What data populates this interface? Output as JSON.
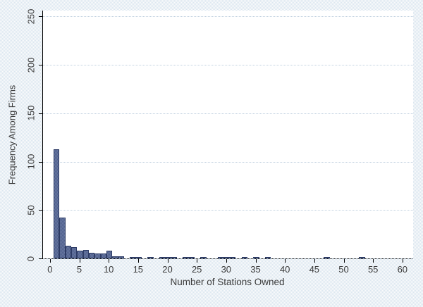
{
  "figure": {
    "background_color": "#e9f0f6",
    "plot_background_color": "#ffffff",
    "bar_fill_color": "#5b6b96",
    "bar_border_color": "#2e3c66",
    "gridline_color": "#c0d0df",
    "axis_color": "#000000",
    "text_color": "#3b3b3b"
  },
  "chart_data": {
    "type": "bar",
    "title": "",
    "xlabel": "Number of Stations Owned",
    "ylabel": "Frequency Among Firms",
    "x_ticks": [
      0,
      5,
      10,
      15,
      20,
      25,
      30,
      35,
      40,
      45,
      50,
      55,
      60
    ],
    "y_ticks": [
      0,
      50,
      100,
      150,
      200,
      250
    ],
    "xlim": [
      -1.3,
      61.7
    ],
    "ylim": [
      0,
      256
    ],
    "grid": "horizontal-dotted",
    "legend_position": "none",
    "bar_width": 1,
    "bars": [
      {
        "x": 1,
        "frequency": 113
      },
      {
        "x": 2,
        "frequency": 42
      },
      {
        "x": 3,
        "frequency": 13
      },
      {
        "x": 4,
        "frequency": 12
      },
      {
        "x": 5,
        "frequency": 8
      },
      {
        "x": 6,
        "frequency": 9
      },
      {
        "x": 7,
        "frequency": 6
      },
      {
        "x": 8,
        "frequency": 5
      },
      {
        "x": 9,
        "frequency": 5
      },
      {
        "x": 10,
        "frequency": 8
      },
      {
        "x": 11,
        "frequency": 2
      },
      {
        "x": 12,
        "frequency": 2
      },
      {
        "x": 14,
        "frequency": 1
      },
      {
        "x": 15,
        "frequency": 1
      },
      {
        "x": 17,
        "frequency": 1
      },
      {
        "x": 19,
        "frequency": 1
      },
      {
        "x": 20,
        "frequency": 1
      },
      {
        "x": 21,
        "frequency": 1
      },
      {
        "x": 23,
        "frequency": 1
      },
      {
        "x": 24,
        "frequency": 1
      },
      {
        "x": 26,
        "frequency": 1
      },
      {
        "x": 29,
        "frequency": 1
      },
      {
        "x": 30,
        "frequency": 1
      },
      {
        "x": 31,
        "frequency": 1
      },
      {
        "x": 33,
        "frequency": 1
      },
      {
        "x": 35,
        "frequency": 1
      },
      {
        "x": 37,
        "frequency": 1
      },
      {
        "x": 47,
        "frequency": 1
      },
      {
        "x": 53,
        "frequency": 1
      }
    ]
  }
}
